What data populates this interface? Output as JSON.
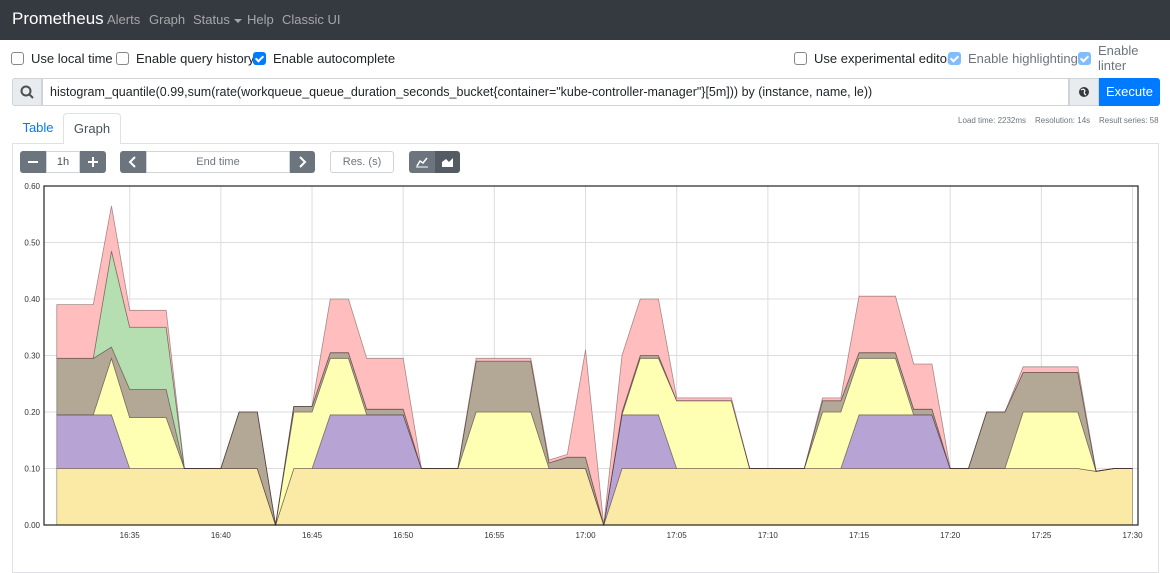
{
  "navbar": {
    "brand": "Prometheus",
    "links": [
      "Alerts",
      "Graph",
      "Status",
      "Help",
      "Classic UI"
    ]
  },
  "options": [
    {
      "label": "Use local time",
      "checked": false
    },
    {
      "label": "Enable query history",
      "checked": false
    },
    {
      "label": "Enable autocomplete",
      "checked": true
    },
    {
      "label": "Use experimental editor",
      "checked": false
    },
    {
      "label": "Enable highlighting",
      "checked": true
    },
    {
      "label": "Enable linter",
      "checked": true
    }
  ],
  "query": {
    "text": "histogram_quantile(0.99,sum(rate(workqueue_queue_duration_seconds_bucket{container=\"kube-controller-manager\"}[5m])) by (instance, name, le))",
    "button": "Execute"
  },
  "stats": {
    "load_time": "Load time: 2232ms",
    "resolution": "Resolution: 14s",
    "result_series": "Result series: 58"
  },
  "tabs": [
    "Table",
    "Graph"
  ],
  "controls": {
    "range": "1h",
    "end_time": "End time",
    "resolution": "Res. (s)"
  },
  "chart_data": {
    "type": "area",
    "stacked": true,
    "grid": true,
    "xlim": [
      30.3,
      90.3
    ],
    "xticks": [
      {
        "value": 35,
        "label": "16:35"
      },
      {
        "value": 40,
        "label": "16:40"
      },
      {
        "value": 45,
        "label": "16:45"
      },
      {
        "value": 50,
        "label": "16:50"
      },
      {
        "value": 55,
        "label": "16:55"
      },
      {
        "value": 60,
        "label": "17:00"
      },
      {
        "value": 65,
        "label": "17:05"
      },
      {
        "value": 70,
        "label": "17:10"
      },
      {
        "value": 75,
        "label": "17:15"
      },
      {
        "value": 80,
        "label": "17:20"
      },
      {
        "value": 85,
        "label": "17:25"
      },
      {
        "value": 90,
        "label": "17:30"
      }
    ],
    "ylim": [
      0,
      0.6
    ],
    "yticks": [
      {
        "value": 0,
        "label": "0.00"
      },
      {
        "value": 0.1,
        "label": "0.10"
      },
      {
        "value": 0.2,
        "label": "0.20"
      },
      {
        "value": 0.3,
        "label": "0.30"
      },
      {
        "value": 0.4,
        "label": "0.40"
      },
      {
        "value": 0.5,
        "label": "0.50"
      },
      {
        "value": 0.6,
        "label": "0.60"
      }
    ],
    "x": [
      31,
      32,
      33,
      34,
      35,
      36,
      37,
      38,
      39,
      40,
      41,
      42,
      43,
      44,
      45,
      46,
      47,
      48,
      49,
      50,
      51,
      52,
      53,
      54,
      55,
      56,
      57,
      58,
      59,
      60,
      61,
      62,
      63,
      64,
      65,
      66,
      67,
      68,
      69,
      70,
      71,
      72,
      73,
      74,
      75,
      76,
      77,
      78,
      79,
      80,
      81,
      82,
      83,
      84,
      85,
      86,
      87,
      88,
      89,
      90
    ],
    "series": [
      {
        "color": "#fbe9a6",
        "values": [
          0.1,
          0.1,
          0.1,
          0.1,
          0.1,
          0.1,
          0.1,
          0.1,
          0.1,
          0.1,
          0.1,
          0.1,
          0,
          0.1,
          0.1,
          0.1,
          0.1,
          0.1,
          0.1,
          0.1,
          0.1,
          0.1,
          0.1,
          0.1,
          0.1,
          0.1,
          0.1,
          0.1,
          0.1,
          0.1,
          0,
          0.1,
          0.1,
          0.1,
          0.1,
          0.1,
          0.1,
          0.1,
          0.1,
          0.1,
          0.1,
          0.1,
          0.1,
          0.1,
          0.1,
          0.1,
          0.1,
          0.1,
          0.1,
          0.1,
          0.1,
          0.1,
          0.1,
          0.1,
          0.1,
          0.1,
          0.1,
          0.095,
          0.1,
          0.1
        ]
      },
      {
        "color": "#b8a4d4",
        "values": [
          0.095,
          0.095,
          0.095,
          0.095,
          0,
          0,
          0,
          0,
          0,
          0,
          0,
          0,
          0,
          0,
          0,
          0.095,
          0.095,
          0.095,
          0.095,
          0.095,
          0,
          0,
          0,
          0,
          0,
          0,
          0,
          0,
          0,
          0,
          0,
          0.095,
          0.095,
          0.095,
          0,
          0,
          0,
          0,
          0,
          0,
          0,
          0,
          0,
          0,
          0.095,
          0.095,
          0.095,
          0.095,
          0.095,
          0,
          0,
          0,
          0,
          0,
          0,
          0,
          0,
          0,
          0,
          0
        ]
      },
      {
        "color": "#ffffb3",
        "values": [
          0,
          0,
          0,
          0.1,
          0.09,
          0.09,
          0.09,
          0,
          0,
          0,
          0,
          0,
          0,
          0.1,
          0.1,
          0.1,
          0.1,
          0,
          0,
          0,
          0,
          0,
          0,
          0.1,
          0.1,
          0.1,
          0.1,
          0,
          0,
          0,
          0,
          0,
          0.1,
          0.1,
          0.12,
          0.12,
          0.12,
          0.12,
          0,
          0,
          0,
          0,
          0.1,
          0.1,
          0.1,
          0.1,
          0.1,
          0,
          0,
          0,
          0,
          0,
          0,
          0.1,
          0.1,
          0.1,
          0.1,
          0,
          0,
          0
        ]
      },
      {
        "color": "#b3a896",
        "values": [
          0.1,
          0.1,
          0.1,
          0.02,
          0.05,
          0.05,
          0.05,
          0,
          0,
          0,
          0.1,
          0.1,
          0,
          0.01,
          0.01,
          0.01,
          0.01,
          0.01,
          0.01,
          0.01,
          0,
          0,
          0,
          0.09,
          0.09,
          0.09,
          0.09,
          0.01,
          0.02,
          0.02,
          0,
          0.005,
          0.005,
          0.005,
          0,
          0,
          0,
          0,
          0,
          0,
          0,
          0,
          0.02,
          0.02,
          0.01,
          0.01,
          0.01,
          0.01,
          0.01,
          0,
          0,
          0.1,
          0.1,
          0.07,
          0.07,
          0.07,
          0.07,
          0,
          0,
          0
        ]
      },
      {
        "color": "#b5dfb0",
        "values": [
          0,
          0,
          0,
          0.17,
          0.11,
          0.11,
          0.11,
          0,
          0,
          0,
          0,
          0,
          0,
          0,
          0,
          0,
          0,
          0,
          0,
          0,
          0,
          0,
          0,
          0,
          0,
          0,
          0,
          0,
          0,
          0,
          0,
          0,
          0,
          0,
          0,
          0,
          0,
          0,
          0,
          0,
          0,
          0,
          0,
          0,
          0,
          0,
          0,
          0,
          0,
          0,
          0,
          0,
          0,
          0,
          0,
          0,
          0,
          0,
          0,
          0
        ]
      },
      {
        "color": "#ffbdbd",
        "values": [
          0.095,
          0.095,
          0.095,
          0.08,
          0.03,
          0.03,
          0.03,
          0,
          0,
          0,
          0,
          0,
          0,
          0,
          0,
          0.095,
          0.095,
          0.09,
          0.09,
          0.09,
          0,
          0,
          0,
          0.005,
          0.005,
          0.005,
          0.005,
          0.005,
          0.005,
          0.19,
          0,
          0.1,
          0.1,
          0.1,
          0.005,
          0.005,
          0.005,
          0.005,
          0,
          0,
          0,
          0,
          0.005,
          0.005,
          0.1,
          0.1,
          0.1,
          0.08,
          0.08,
          0,
          0,
          0,
          0,
          0.01,
          0.01,
          0.01,
          0.01,
          0,
          0,
          0
        ]
      }
    ]
  }
}
